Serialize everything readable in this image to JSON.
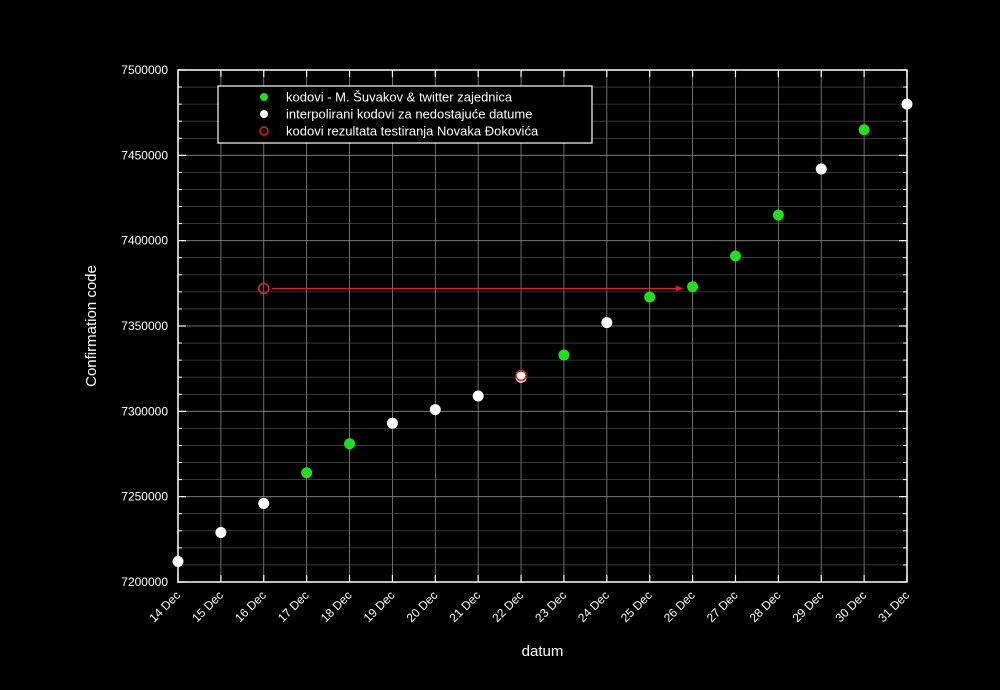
{
  "chart_data": {
    "type": "scatter",
    "xlabel": "datum",
    "ylabel": "Confirmation code",
    "categories": [
      "14 Dec",
      "15 Dec",
      "16 Dec",
      "17 Dec",
      "18 Dec",
      "19 Dec",
      "20 Dec",
      "21 Dec",
      "22 Dec",
      "23 Dec",
      "24 Dec",
      "25 Dec",
      "26 Dec",
      "27 Dec",
      "28 Dec",
      "29 Dec",
      "30 Dec",
      "31 Dec"
    ],
    "ylim": [
      7200000,
      7500000
    ],
    "yticks": [
      "7200000",
      "7250000",
      "7300000",
      "7350000",
      "7400000",
      "7450000",
      "7500000"
    ],
    "grid": true,
    "legend_position": "top-left",
    "series": [
      {
        "name": "kodovi - M. Šuvakov & twitter zajednica",
        "color": "#22dd22",
        "marker": "filled",
        "points": [
          {
            "x": "17 Dec",
            "y": 7264000
          },
          {
            "x": "18 Dec",
            "y": 7281000
          },
          {
            "x": "23 Dec",
            "y": 7333000
          },
          {
            "x": "25 Dec",
            "y": 7367000
          },
          {
            "x": "26 Dec",
            "y": 7373000
          },
          {
            "x": "27 Dec",
            "y": 7391000
          },
          {
            "x": "28 Dec",
            "y": 7415000
          },
          {
            "x": "30 Dec",
            "y": 7465000
          }
        ]
      },
      {
        "name": "interpolirani kodovi za nedostajuće datume",
        "color": "#ffffff",
        "marker": "filled",
        "points": [
          {
            "x": "14 Dec",
            "y": 7212000
          },
          {
            "x": "15 Dec",
            "y": 7229000
          },
          {
            "x": "16 Dec",
            "y": 7246000
          },
          {
            "x": "19 Dec",
            "y": 7293000
          },
          {
            "x": "20 Dec",
            "y": 7301000
          },
          {
            "x": "21 Dec",
            "y": 7309000
          },
          {
            "x": "22 Dec",
            "y": 7320000
          },
          {
            "x": "24 Dec",
            "y": 7352000
          },
          {
            "x": "29 Dec",
            "y": 7442000
          },
          {
            "x": "31 Dec",
            "y": 7480000
          }
        ]
      },
      {
        "name": "kodovi rezultata testiranja Novaka Đokovića",
        "color": "#dd2222",
        "marker": "open",
        "points": [
          {
            "x": "16 Dec",
            "y": 7372000
          },
          {
            "x": "22 Dec",
            "y": 7321000
          }
        ]
      }
    ],
    "annotations": [
      {
        "type": "arrow",
        "from": {
          "x": "16 Dec",
          "y": 7372000
        },
        "to": {
          "x": "26 Dec",
          "y": 7372000
        },
        "color": "#dd2222"
      }
    ]
  }
}
